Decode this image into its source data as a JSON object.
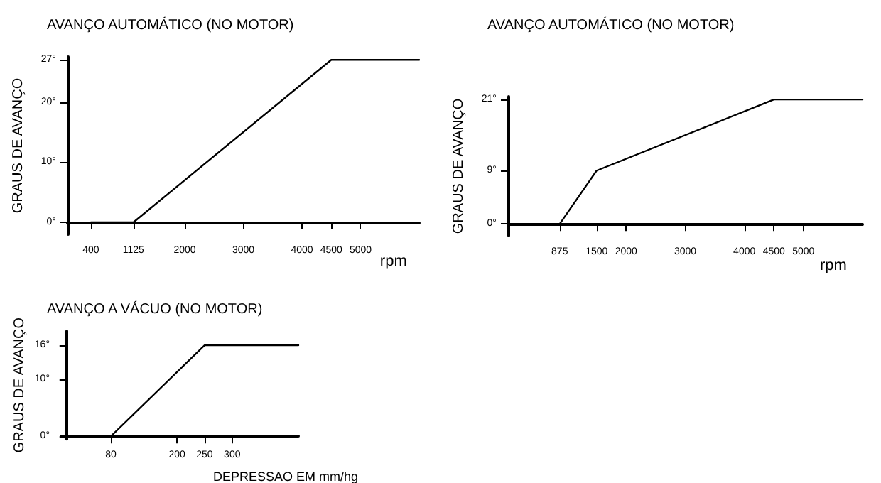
{
  "chart_data": [
    {
      "type": "line",
      "title": "AVANÇO AUTOMÁTICO (NO MOTOR)",
      "xlabel": "rpm",
      "ylabel": "GRAUS DE AVANÇO",
      "x": [
        400,
        1125,
        4500,
        6000
      ],
      "series": [
        {
          "color": "#000000",
          "values": [
            0,
            0,
            27,
            27
          ]
        }
      ],
      "xlim": [
        0,
        6000
      ],
      "xticks": [
        400,
        1125,
        2000,
        3000,
        4000,
        4500,
        5000
      ],
      "ylim": [
        -2,
        27.5
      ],
      "yticks": [
        {
          "value": 0,
          "label": "0°"
        },
        {
          "value": 10,
          "label": "10°"
        },
        {
          "value": 20,
          "label": "20°"
        },
        {
          "value": 27,
          "label": "27°"
        }
      ],
      "grid": false,
      "marker": "none",
      "line_style": "solid"
    },
    {
      "type": "line",
      "title": "AVANÇO AUTOMÁTICO (NO MOTOR)",
      "xlabel": "rpm",
      "ylabel": "GRAUS DE AVANÇO",
      "x": [
        875,
        1500,
        4500,
        6000
      ],
      "series": [
        {
          "color": "#000000",
          "values": [
            0,
            9,
            21,
            21
          ]
        }
      ],
      "xlim": [
        0,
        6000
      ],
      "xticks": [
        875,
        1500,
        2000,
        3000,
        4000,
        4500,
        5000
      ],
      "ylim": [
        -2,
        21.5
      ],
      "yticks": [
        {
          "value": 0,
          "label": "0°"
        },
        {
          "value": 9,
          "label": "9°"
        },
        {
          "value": 21,
          "label": "21°"
        }
      ],
      "grid": false,
      "marker": "none",
      "line_style": "solid"
    },
    {
      "type": "line",
      "title": "AVANÇO A VÁCUO (NO MOTOR)",
      "xlabel": "DEPRESSAO EM mm/hg",
      "ylabel": "GRAUS DE AVANÇO",
      "x": [
        80,
        250,
        420
      ],
      "series": [
        {
          "color": "#000000",
          "values": [
            0,
            16,
            16
          ]
        }
      ],
      "xlim": [
        -10,
        420
      ],
      "xticks": [
        80,
        200,
        250,
        300
      ],
      "ylim": [
        -0.5,
        18.5
      ],
      "yticks": [
        {
          "value": 0,
          "label": "0°"
        },
        {
          "value": 10,
          "label": "10°"
        },
        {
          "value": 16,
          "label": "16°"
        }
      ],
      "grid": false,
      "marker": "none",
      "line_style": "solid"
    }
  ]
}
